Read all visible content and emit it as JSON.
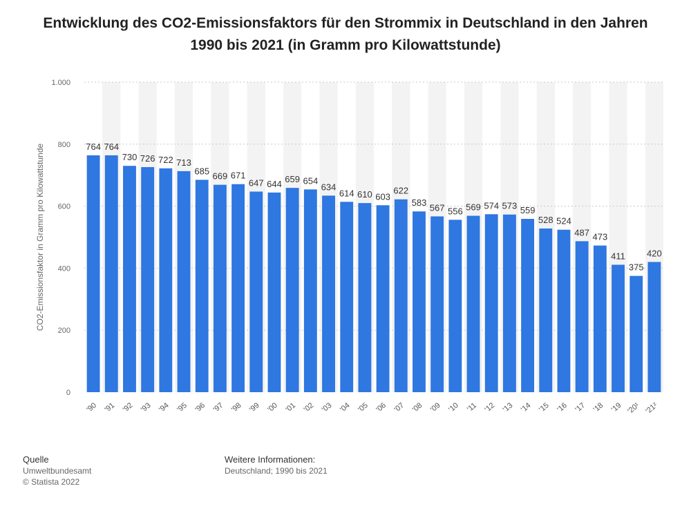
{
  "chart_data": {
    "type": "bar",
    "title": "Entwicklung des CO2-Emissionsfaktors für den Strommix in Deutschland in den Jahren 1990 bis 2021 (in Gramm pro Kilowattstunde)",
    "ylabel": "CO2-Emissionsfaktor in Gramm pro Kilowattstunde",
    "xlabel": "",
    "ylim": [
      0,
      1000
    ],
    "yticks": [
      0,
      200,
      400,
      600,
      800,
      1000
    ],
    "ytick_labels": [
      "0",
      "200",
      "400",
      "600",
      "800",
      "1.000"
    ],
    "categories": [
      "'90",
      "'91",
      "'92",
      "'93",
      "'94",
      "'95",
      "'96",
      "'97",
      "'98",
      "'99",
      "'00",
      "'01",
      "'02",
      "'03",
      "'04",
      "'05",
      "'06",
      "'07",
      "'08",
      "'09",
      "'10",
      "'11",
      "'12",
      "'13",
      "'14",
      "'15",
      "'16",
      "'17",
      "'18",
      "'19",
      "'20¹",
      "'21²"
    ],
    "values": [
      764,
      764,
      730,
      726,
      722,
      713,
      685,
      669,
      671,
      647,
      644,
      659,
      654,
      634,
      614,
      610,
      603,
      622,
      583,
      567,
      556,
      569,
      574,
      573,
      559,
      528,
      524,
      487,
      473,
      411,
      375,
      420
    ],
    "grid": true,
    "bar_color": "#2f77e1"
  },
  "footer": {
    "source_heading": "Quelle",
    "source_name": "Umweltbundesamt",
    "copyright": "© Statista 2022",
    "info_heading": "Weitere Informationen:",
    "info_text": "Deutschland; 1990 bis 2021"
  }
}
